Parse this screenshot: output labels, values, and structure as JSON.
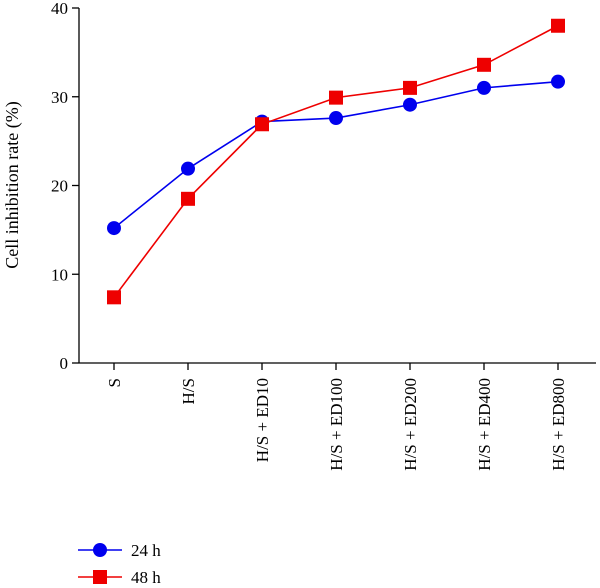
{
  "chart_data": {
    "type": "line",
    "title": "",
    "xlabel": "",
    "ylabel": "Cell inhibition rate (%)",
    "categories": [
      "S",
      "H/S",
      "H/S + ED10",
      "H/S + ED100",
      "H/S + ED200",
      "H/S + ED400",
      "H/S + ED800"
    ],
    "ylim": [
      0,
      40
    ],
    "yticks": [
      0,
      10,
      20,
      30,
      40
    ],
    "grid": false,
    "legend_position": "bottom-left",
    "series": [
      {
        "name": "24 h",
        "color": "#0000ee",
        "marker": "circle",
        "values": [
          15.2,
          21.9,
          27.2,
          27.6,
          29.1,
          31.0,
          31.7
        ]
      },
      {
        "name": "48 h",
        "color": "#ee0000",
        "marker": "square",
        "values": [
          7.4,
          18.5,
          26.9,
          29.9,
          31.0,
          33.6,
          38.0
        ]
      }
    ]
  }
}
